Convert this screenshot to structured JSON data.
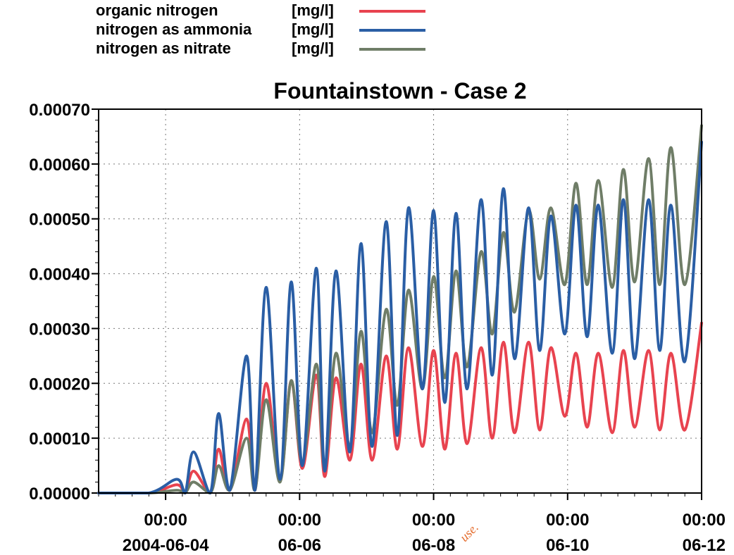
{
  "chart_data": {
    "type": "line",
    "title": "Fountainstown - Case 2",
    "xlabel": "",
    "ylabel": "",
    "ylim": [
      0,
      0.0007
    ],
    "xlim": [
      "2004-06-03 00:00",
      "2004-06-12 00:00"
    ],
    "y_ticks": [
      "0.00000",
      "0.00010",
      "0.00020",
      "0.00030",
      "0.00040",
      "0.00050",
      "0.00060",
      "0.00070"
    ],
    "x_ticks": [
      {
        "time": "00:00",
        "date": "2004-06-04"
      },
      {
        "time": "00:00",
        "date": "06-06"
      },
      {
        "time": "00:00",
        "date": "06-08"
      },
      {
        "time": "00:00",
        "date": "06-10"
      },
      {
        "time": "00:00",
        "date": "06-12"
      }
    ],
    "grid": true,
    "legend_position": "top-left",
    "watermark": "use.",
    "series": [
      {
        "name": "organic nitrogen",
        "unit": "[mg/l]",
        "color": "#e8434f",
        "x": [
          "2004-06-03 00:00",
          "2004-06-03 18:00",
          "2004-06-04 04:00",
          "2004-06-04 07:00",
          "2004-06-04 10:00",
          "2004-06-04 16:00",
          "2004-06-04 19:00",
          "2004-06-04 23:00",
          "2004-06-05 05:00",
          "2004-06-05 08:00",
          "2004-06-05 12:00",
          "2004-06-05 17:00",
          "2004-06-05 21:00",
          "2004-06-06 01:00",
          "2004-06-06 06:00",
          "2004-06-06 09:00",
          "2004-06-06 13:00",
          "2004-06-06 18:00",
          "2004-06-06 22:00",
          "2004-06-07 02:00",
          "2004-06-07 07:00",
          "2004-06-07 11:00",
          "2004-06-07 15:00",
          "2004-06-07 20:00",
          "2004-06-08 00:00",
          "2004-06-08 04:00",
          "2004-06-08 08:00",
          "2004-06-08 12:00",
          "2004-06-08 17:00",
          "2004-06-08 21:00",
          "2004-06-09 01:00",
          "2004-06-09 05:00",
          "2004-06-09 10:00",
          "2004-06-09 14:00",
          "2004-06-09 18:00",
          "2004-06-09 23:00",
          "2004-06-10 03:00",
          "2004-06-10 07:00",
          "2004-06-10 11:00",
          "2004-06-10 16:00",
          "2004-06-10 20:00",
          "2004-06-11 00:00",
          "2004-06-11 05:00",
          "2004-06-11 09:00",
          "2004-06-11 13:00",
          "2004-06-11 18:00",
          "2004-06-12 00:00"
        ],
        "values": [
          0,
          0,
          1.5e-05,
          0,
          4e-05,
          0,
          8e-05,
          5e-06,
          0.000135,
          5e-06,
          0.0002,
          2.5e-05,
          0.000205,
          4.5e-05,
          0.000215,
          3e-05,
          0.00021,
          6e-05,
          0.000235,
          6e-05,
          0.00025,
          8e-05,
          0.000265,
          8.5e-05,
          0.00026,
          8e-05,
          0.000255,
          9e-05,
          0.000265,
          0.0001,
          0.000275,
          0.00011,
          0.000275,
          0.000115,
          0.000265,
          0.00014,
          0.000255,
          0.00012,
          0.000255,
          0.00011,
          0.00026,
          0.00012,
          0.00026,
          0.000115,
          0.000255,
          0.000115,
          0.00031
        ]
      },
      {
        "name": "nitrogen as ammonia",
        "unit": "[mg/l]",
        "color": "#2a5ea5",
        "x": [
          "2004-06-03 00:00",
          "2004-06-03 18:00",
          "2004-06-04 04:00",
          "2004-06-04 07:00",
          "2004-06-04 10:00",
          "2004-06-04 16:00",
          "2004-06-04 19:00",
          "2004-06-04 23:00",
          "2004-06-05 05:00",
          "2004-06-05 08:00",
          "2004-06-05 12:00",
          "2004-06-05 17:00",
          "2004-06-05 21:00",
          "2004-06-06 01:00",
          "2004-06-06 06:00",
          "2004-06-06 09:00",
          "2004-06-06 13:00",
          "2004-06-06 18:00",
          "2004-06-06 22:00",
          "2004-06-07 02:00",
          "2004-06-07 07:00",
          "2004-06-07 11:00",
          "2004-06-07 15:00",
          "2004-06-07 20:00",
          "2004-06-08 00:00",
          "2004-06-08 04:00",
          "2004-06-08 08:00",
          "2004-06-08 12:00",
          "2004-06-08 17:00",
          "2004-06-08 21:00",
          "2004-06-09 01:00",
          "2004-06-09 05:00",
          "2004-06-09 10:00",
          "2004-06-09 14:00",
          "2004-06-09 18:00",
          "2004-06-09 23:00",
          "2004-06-10 03:00",
          "2004-06-10 07:00",
          "2004-06-10 11:00",
          "2004-06-10 16:00",
          "2004-06-10 20:00",
          "2004-06-11 00:00",
          "2004-06-11 05:00",
          "2004-06-11 09:00",
          "2004-06-11 13:00",
          "2004-06-11 18:00",
          "2004-06-12 00:00"
        ],
        "values": [
          0,
          0,
          2.5e-05,
          0,
          7.5e-05,
          0,
          0.000145,
          5e-06,
          0.00025,
          5e-06,
          0.000375,
          2.5e-05,
          0.000385,
          5e-05,
          0.00041,
          4e-05,
          0.000405,
          7.5e-05,
          0.000455,
          8.5e-05,
          0.000495,
          0.000105,
          0.00052,
          0.00019,
          0.000515,
          0.000165,
          0.00051,
          0.00019,
          0.000535,
          0.000215,
          0.000555,
          0.000245,
          0.00052,
          0.00026,
          0.000505,
          0.00029,
          0.000525,
          0.000285,
          0.000525,
          0.000255,
          0.000535,
          0.000245,
          0.000535,
          0.00026,
          0.000525,
          0.00024,
          0.00064
        ]
      },
      {
        "name": "nitrogen as nitrate",
        "unit": "[mg/l]",
        "color": "#6f7d67",
        "x": [
          "2004-06-03 00:00",
          "2004-06-03 18:00",
          "2004-06-04 04:00",
          "2004-06-04 07:00",
          "2004-06-04 10:00",
          "2004-06-04 16:00",
          "2004-06-04 19:00",
          "2004-06-04 23:00",
          "2004-06-05 05:00",
          "2004-06-05 08:00",
          "2004-06-05 12:00",
          "2004-06-05 17:00",
          "2004-06-05 21:00",
          "2004-06-06 01:00",
          "2004-06-06 06:00",
          "2004-06-06 09:00",
          "2004-06-06 13:00",
          "2004-06-06 18:00",
          "2004-06-06 22:00",
          "2004-06-07 02:00",
          "2004-06-07 07:00",
          "2004-06-07 11:00",
          "2004-06-07 15:00",
          "2004-06-07 20:00",
          "2004-06-08 00:00",
          "2004-06-08 04:00",
          "2004-06-08 08:00",
          "2004-06-08 12:00",
          "2004-06-08 17:00",
          "2004-06-08 21:00",
          "2004-06-09 01:00",
          "2004-06-09 05:00",
          "2004-06-09 10:00",
          "2004-06-09 14:00",
          "2004-06-09 18:00",
          "2004-06-09 23:00",
          "2004-06-10 03:00",
          "2004-06-10 07:00",
          "2004-06-10 11:00",
          "2004-06-10 16:00",
          "2004-06-10 20:00",
          "2004-06-11 00:00",
          "2004-06-11 05:00",
          "2004-06-11 09:00",
          "2004-06-11 13:00",
          "2004-06-11 18:00",
          "2004-06-12 00:00"
        ],
        "values": [
          0,
          0,
          5e-06,
          0,
          2e-05,
          0,
          5e-05,
          5e-06,
          0.0001,
          5e-06,
          0.00017,
          2e-05,
          0.000205,
          5.5e-05,
          0.000235,
          4.5e-05,
          0.000255,
          8.5e-05,
          0.000295,
          0.00011,
          0.000335,
          0.00016,
          0.00037,
          0.00019,
          0.000395,
          0.00021,
          0.000405,
          0.00023,
          0.00044,
          0.00029,
          0.000475,
          0.00033,
          0.000515,
          0.00039,
          0.00052,
          0.00038,
          0.000565,
          0.00038,
          0.00057,
          0.000375,
          0.00059,
          0.000385,
          0.00061,
          0.00038,
          0.00063,
          0.00038,
          0.00067
        ]
      }
    ]
  }
}
